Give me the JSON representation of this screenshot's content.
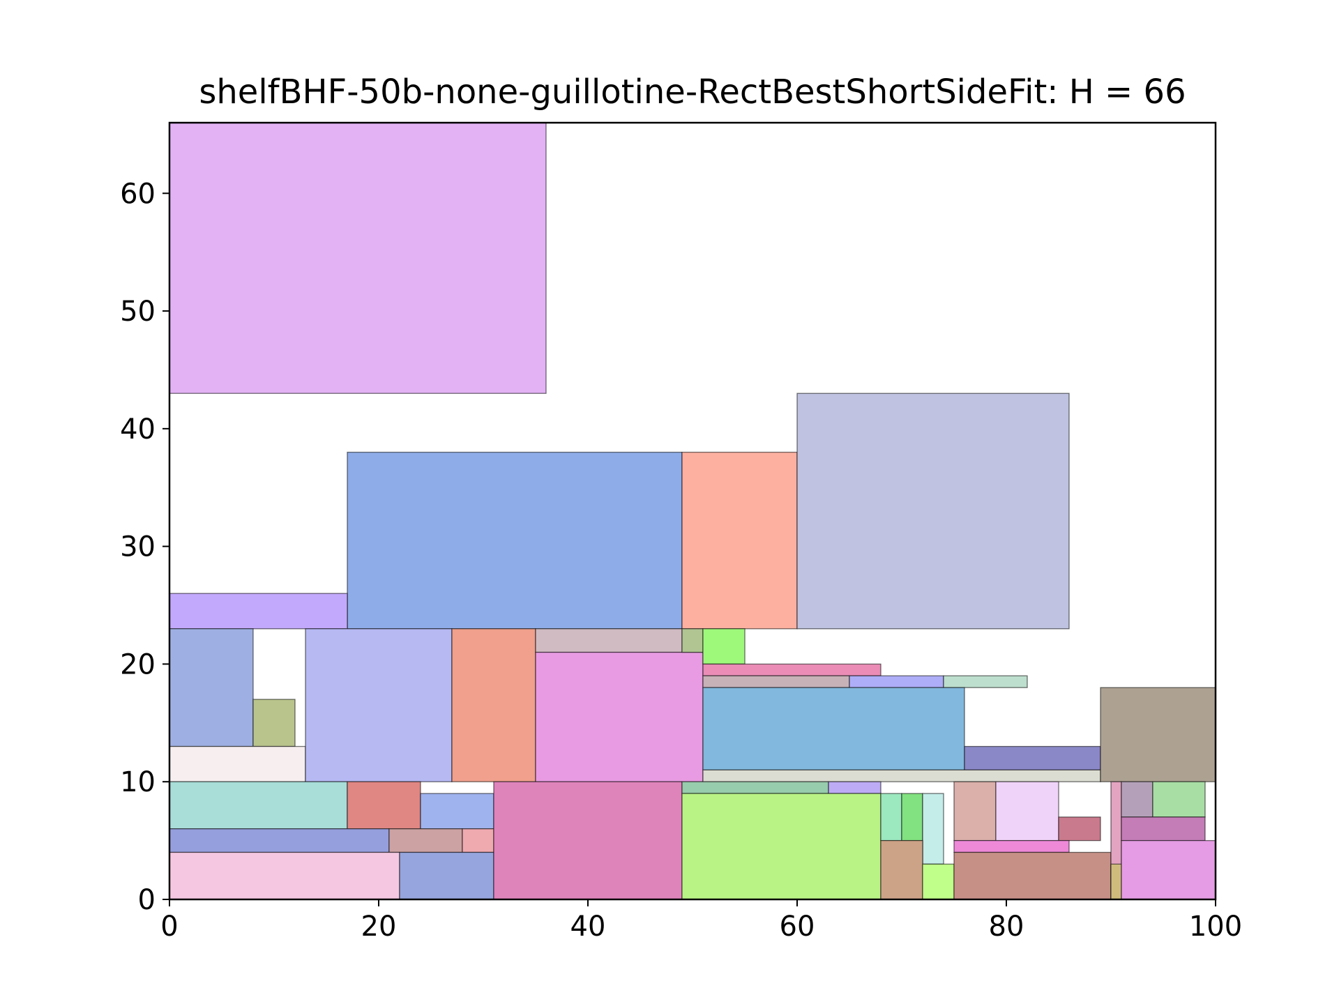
{
  "chart_data": {
    "type": "rectangle-packing",
    "title": "shelfBHF-50b-none-guillotine-RectBestShortSideFit: H = 66",
    "xlabel": "",
    "ylabel": "",
    "xlim": [
      0,
      100
    ],
    "ylim": [
      0,
      66
    ],
    "x_ticks": [
      0,
      20,
      40,
      60,
      80,
      100
    ],
    "y_ticks": [
      0,
      10,
      20,
      30,
      40,
      50,
      60
    ],
    "grid": false,
    "rectangles": [
      {
        "x": 0,
        "y": 43,
        "w": 36,
        "h": 23,
        "color": "#e2b2f4"
      },
      {
        "x": 17,
        "y": 23,
        "w": 32,
        "h": 15,
        "color": "#8eace8"
      },
      {
        "x": 49,
        "y": 23,
        "w": 11,
        "h": 15,
        "color": "#feb0a0"
      },
      {
        "x": 60,
        "y": 23,
        "w": 26,
        "h": 20,
        "color": "#bfc3e1"
      },
      {
        "x": 0,
        "y": 23,
        "w": 17,
        "h": 3,
        "color": "#c3a9fb"
      },
      {
        "x": 0,
        "y": 13,
        "w": 8,
        "h": 10,
        "color": "#9eb0e3"
      },
      {
        "x": 8,
        "y": 13,
        "w": 4,
        "h": 4,
        "color": "#b9c48d"
      },
      {
        "x": 0,
        "y": 10,
        "w": 13,
        "h": 3,
        "color": "#f6eeef"
      },
      {
        "x": 13,
        "y": 10,
        "w": 14,
        "h": 13,
        "color": "#b6b9f2"
      },
      {
        "x": 27,
        "y": 10,
        "w": 8,
        "h": 13,
        "color": "#f0a08c"
      },
      {
        "x": 35,
        "y": 21,
        "w": 14,
        "h": 2,
        "color": "#d0bbc3"
      },
      {
        "x": 35,
        "y": 10,
        "w": 16,
        "h": 11,
        "color": "#e89be2"
      },
      {
        "x": 49,
        "y": 21,
        "w": 2,
        "h": 2,
        "color": "#b1c593"
      },
      {
        "x": 51,
        "y": 20,
        "w": 4,
        "h": 3,
        "color": "#9ef97b"
      },
      {
        "x": 51,
        "y": 19,
        "w": 17,
        "h": 1,
        "color": "#ea8cb6"
      },
      {
        "x": 51,
        "y": 18,
        "w": 14,
        "h": 1,
        "color": "#c7b2b8"
      },
      {
        "x": 65,
        "y": 18,
        "w": 9,
        "h": 1,
        "color": "#aeadf8"
      },
      {
        "x": 74,
        "y": 18,
        "w": 8,
        "h": 1,
        "color": "#bddfcd"
      },
      {
        "x": 51,
        "y": 11,
        "w": 25,
        "h": 7,
        "color": "#82b8dd"
      },
      {
        "x": 76,
        "y": 11,
        "w": 13,
        "h": 2,
        "color": "#8b88c8"
      },
      {
        "x": 51,
        "y": 10,
        "w": 38,
        "h": 1,
        "color": "#dcddd2"
      },
      {
        "x": 89,
        "y": 10,
        "w": 11,
        "h": 8,
        "color": "#ada192"
      },
      {
        "x": 0,
        "y": 6,
        "w": 17,
        "h": 4,
        "color": "#a8ddd8"
      },
      {
        "x": 17,
        "y": 6,
        "w": 7,
        "h": 4,
        "color": "#e08783"
      },
      {
        "x": 24,
        "y": 6,
        "w": 7,
        "h": 3,
        "color": "#9fb3ee"
      },
      {
        "x": 0,
        "y": 4,
        "w": 21,
        "h": 2,
        "color": "#969fdd"
      },
      {
        "x": 21,
        "y": 4,
        "w": 7,
        "h": 2,
        "color": "#cca2a2"
      },
      {
        "x": 28,
        "y": 4,
        "w": 3,
        "h": 2,
        "color": "#efaab0"
      },
      {
        "x": 0,
        "y": 0,
        "w": 22,
        "h": 4,
        "color": "#f5c7e1"
      },
      {
        "x": 22,
        "y": 0,
        "w": 9,
        "h": 4,
        "color": "#96a5dd"
      },
      {
        "x": 31,
        "y": 0,
        "w": 18,
        "h": 10,
        "color": "#df83bb"
      },
      {
        "x": 49,
        "y": 9,
        "w": 14,
        "h": 1,
        "color": "#97ccac"
      },
      {
        "x": 63,
        "y": 9,
        "w": 5,
        "h": 1,
        "color": "#bdabf5"
      },
      {
        "x": 49,
        "y": 0,
        "w": 19,
        "h": 9,
        "color": "#b9f385"
      },
      {
        "x": 68,
        "y": 5,
        "w": 2,
        "h": 4,
        "color": "#9ce8bf"
      },
      {
        "x": 70,
        "y": 5,
        "w": 2,
        "h": 4,
        "color": "#82e180"
      },
      {
        "x": 72,
        "y": 3,
        "w": 2,
        "h": 6,
        "color": "#c4ece8"
      },
      {
        "x": 68,
        "y": 0,
        "w": 4,
        "h": 5,
        "color": "#cda387"
      },
      {
        "x": 72,
        "y": 0,
        "w": 3,
        "h": 3,
        "color": "#c0ff89"
      },
      {
        "x": 75,
        "y": 5,
        "w": 4,
        "h": 5,
        "color": "#dbb0aa"
      },
      {
        "x": 79,
        "y": 5,
        "w": 6,
        "h": 5,
        "color": "#f0d3f9"
      },
      {
        "x": 85,
        "y": 5,
        "w": 4,
        "h": 2,
        "color": "#c97a8c"
      },
      {
        "x": 75,
        "y": 4,
        "w": 11,
        "h": 1,
        "color": "#ee89d8"
      },
      {
        "x": 75,
        "y": 0,
        "w": 15,
        "h": 4,
        "color": "#c79087"
      },
      {
        "x": 90,
        "y": 0,
        "w": 1,
        "h": 10,
        "color": "#e3a4c1"
      },
      {
        "x": 90,
        "y": 0,
        "w": 1,
        "h": 3,
        "color": "#cfbc7c"
      },
      {
        "x": 91,
        "y": 7,
        "w": 3,
        "h": 3,
        "color": "#b4a1b9"
      },
      {
        "x": 94,
        "y": 7,
        "w": 5,
        "h": 3,
        "color": "#a8dea4"
      },
      {
        "x": 91,
        "y": 5,
        "w": 8,
        "h": 2,
        "color": "#c47db7"
      },
      {
        "x": 91,
        "y": 0,
        "w": 9,
        "h": 5,
        "color": "#e59ce4"
      }
    ]
  }
}
